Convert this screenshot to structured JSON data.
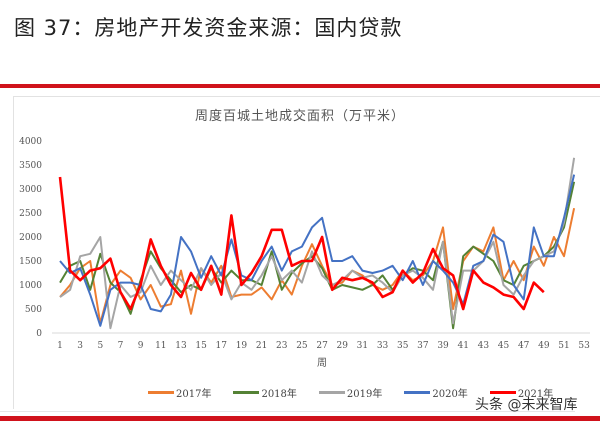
{
  "figure": {
    "title": "图 37：房地产开发资金来源：国内贷款"
  },
  "watermark": "头条 @未来智库",
  "chart_data": {
    "type": "line",
    "title": "周度百城土地成交面积（万平米）",
    "xlabel": "周",
    "ylabel": "",
    "ylim": [
      0,
      4000
    ],
    "yticks": [
      0,
      500,
      1000,
      1500,
      2000,
      2500,
      3000,
      3500,
      4000
    ],
    "xticks": [
      1,
      3,
      5,
      7,
      9,
      11,
      13,
      15,
      17,
      19,
      21,
      23,
      25,
      27,
      29,
      31,
      33,
      35,
      37,
      39,
      41,
      43,
      45,
      47,
      49,
      51,
      53
    ],
    "grid": false,
    "legend_position": "bottom",
    "x": [
      1,
      2,
      3,
      4,
      5,
      6,
      7,
      8,
      9,
      10,
      11,
      12,
      13,
      14,
      15,
      16,
      17,
      18,
      19,
      20,
      21,
      22,
      23,
      24,
      25,
      26,
      27,
      28,
      29,
      30,
      31,
      32,
      33,
      34,
      35,
      36,
      37,
      38,
      39,
      40,
      41,
      42,
      43,
      44,
      45,
      46,
      47,
      48,
      49,
      50,
      51,
      52
    ],
    "series": [
      {
        "name": "2017年",
        "color": "#ed7d31",
        "values": [
          750,
          1000,
          1350,
          1500,
          200,
          1000,
          1300,
          1150,
          700,
          1000,
          550,
          600,
          1300,
          400,
          1350,
          1050,
          1400,
          750,
          800,
          800,
          950,
          700,
          1100,
          800,
          1400,
          1850,
          1400,
          1000,
          1050,
          1300,
          1200,
          1000,
          900,
          1000,
          1300,
          1100,
          1200,
          1500,
          2200,
          500,
          1500,
          1800,
          1700,
          2200,
          1100,
          1500,
          1100,
          1800,
          1400,
          2000,
          1600,
          2600
        ]
      },
      {
        "name": "2018年",
        "color": "#548235",
        "values": [
          1050,
          1400,
          1500,
          900,
          1650,
          1050,
          850,
          400,
          1100,
          1700,
          1350,
          1100,
          850,
          1000,
          900,
          1350,
          1050,
          1300,
          1100,
          1100,
          1000,
          1700,
          900,
          1250,
          1450,
          1600,
          1350,
          900,
          1000,
          950,
          900,
          1000,
          1200,
          900,
          1200,
          1350,
          1300,
          1100,
          1900,
          100,
          1600,
          1800,
          1650,
          1500,
          1100,
          1000,
          1400,
          1500,
          1600,
          1800,
          2200,
          3150
        ]
      },
      {
        "name": "2019年",
        "color": "#a5a5a5",
        "values": [
          750,
          900,
          1600,
          1650,
          2000,
          100,
          1000,
          750,
          850,
          1400,
          1000,
          1300,
          1100,
          900,
          1350,
          1000,
          1250,
          700,
          1050,
          900,
          1200,
          1600,
          1100,
          1300,
          1050,
          1700,
          1200,
          1000,
          1100,
          1300,
          1150,
          1200,
          1050,
          850,
          1200,
          1300,
          1150,
          900,
          1900,
          200,
          1300,
          1300,
          1500,
          1900,
          1000,
          800,
          1200,
          1500,
          1600,
          1700,
          2300,
          3650
        ]
      },
      {
        "name": "2020年",
        "color": "#4472c4",
        "values": [
          1500,
          1250,
          1350,
          800,
          150,
          900,
          1050,
          1050,
          1000,
          500,
          450,
          800,
          2000,
          1700,
          1150,
          1600,
          1200,
          1950,
          1200,
          1100,
          1500,
          1800,
          1300,
          1700,
          1800,
          2200,
          2400,
          1500,
          1500,
          1600,
          1300,
          1250,
          1300,
          1400,
          1100,
          1500,
          1000,
          1500,
          1300,
          1050,
          600,
          1400,
          1500,
          2050,
          1900,
          1000,
          700,
          2200,
          1600,
          1600,
          2400,
          3300
        ]
      },
      {
        "name": "2021年",
        "color": "#ff0000",
        "values": [
          3250,
          1300,
          1100,
          1300,
          1350,
          1550,
          850,
          500,
          1000,
          1950,
          1400,
          1000,
          750,
          1250,
          900,
          1400,
          800,
          2450,
          1000,
          1250,
          1600,
          2150,
          2150,
          1400,
          1500,
          1500,
          2000,
          900,
          1150,
          1100,
          1150,
          1050,
          750,
          850,
          1300,
          1050,
          1250,
          1750,
          1350,
          1200,
          500,
          1300,
          1050,
          950,
          800,
          750,
          500,
          1050,
          850,
          null,
          null,
          null
        ]
      }
    ]
  }
}
